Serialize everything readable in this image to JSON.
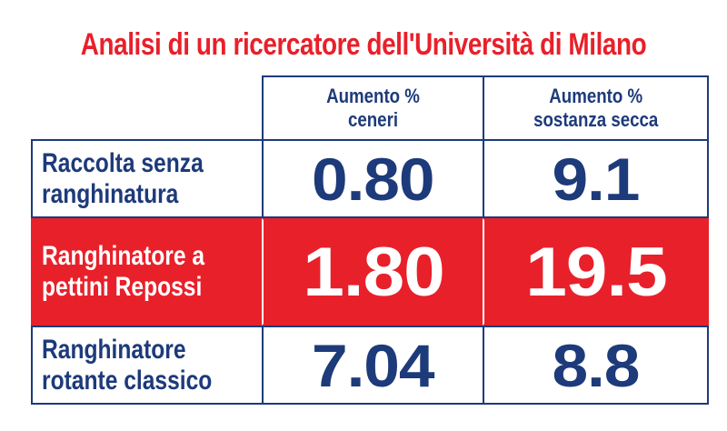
{
  "title": "Analisi di un ricercatore dell'Università di Milano",
  "colors": {
    "title": "#e8202a",
    "text": "#1d3a7a",
    "highlight_bg": "#e8202a",
    "highlight_text": "#ffffff"
  },
  "chart_data": {
    "type": "table",
    "title": "Analisi di un ricercatore dell'Università di Milano",
    "columns": [
      {
        "line1": "Aumento %",
        "line2": "ceneri"
      },
      {
        "line1": "Aumento %",
        "line2": "sostanza secca"
      }
    ],
    "rows": [
      {
        "label_line1": "Raccolta senza",
        "label_line2": "ranghinatura",
        "values": [
          "0.80",
          "9.1"
        ],
        "highlight": false
      },
      {
        "label_line1": "Ranghinatore a",
        "label_line2": "pettini Repossi",
        "values": [
          "1.80",
          "19.5"
        ],
        "highlight": true
      },
      {
        "label_line1": "Ranghinatore",
        "label_line2": "rotante classico",
        "values": [
          "7.04",
          "8.8"
        ],
        "highlight": false
      }
    ]
  }
}
